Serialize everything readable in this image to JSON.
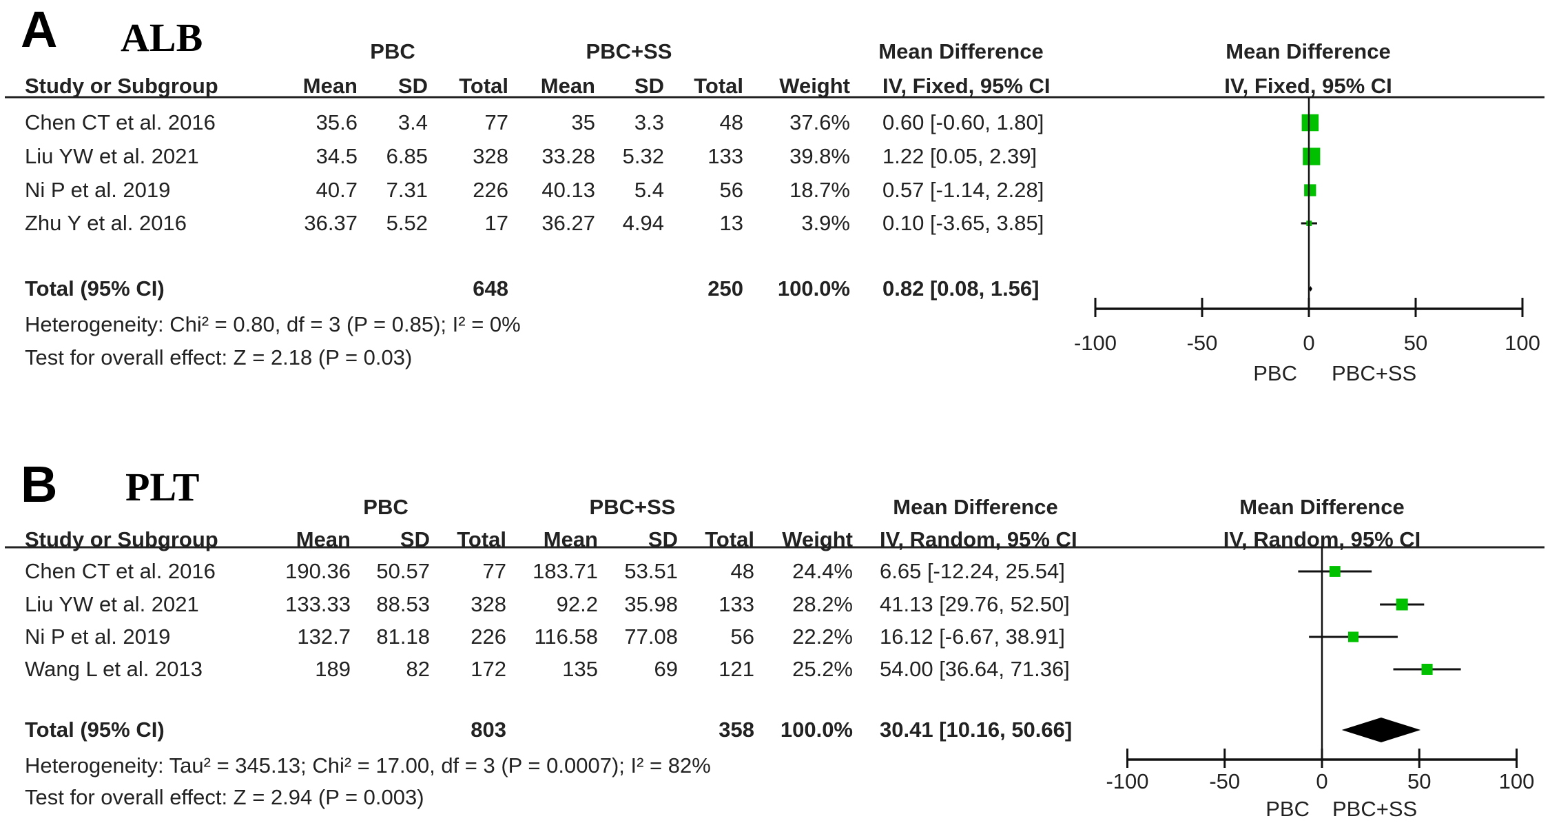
{
  "chart_data": [
    {
      "type": "forest",
      "panel_label": "A",
      "title": "ALB",
      "group1": "PBC",
      "group2": "PBC+SS",
      "effect_header": "Mean Difference",
      "method": "IV, Fixed, 95% CI",
      "columns": [
        "Study or Subgroup",
        "Mean",
        "SD",
        "Total",
        "Mean",
        "SD",
        "Total",
        "Weight",
        "IV, Fixed, 95% CI"
      ],
      "studies": [
        {
          "name": "Chen CT et al. 2016",
          "mean1": "35.6",
          "sd1": "3.4",
          "n1": "77",
          "mean2": "35",
          "sd2": "3.3",
          "n2": "48",
          "weight": "37.6%",
          "ci_text": "0.60 [-0.60, 1.80]",
          "md": 0.6,
          "lo": -0.6,
          "hi": 1.8,
          "w": 37.6
        },
        {
          "name": "Liu YW et al. 2021",
          "mean1": "34.5",
          "sd1": "6.85",
          "n1": "328",
          "mean2": "33.28",
          "sd2": "5.32",
          "n2": "133",
          "weight": "39.8%",
          "ci_text": "1.22 [0.05, 2.39]",
          "md": 1.22,
          "lo": 0.05,
          "hi": 2.39,
          "w": 39.8
        },
        {
          "name": "Ni P et al. 2019",
          "mean1": "40.7",
          "sd1": "7.31",
          "n1": "226",
          "mean2": "40.13",
          "sd2": "5.4",
          "n2": "56",
          "weight": "18.7%",
          "ci_text": "0.57 [-1.14, 2.28]",
          "md": 0.57,
          "lo": -1.14,
          "hi": 2.28,
          "w": 18.7
        },
        {
          "name": "Zhu Y et al. 2016",
          "mean1": "36.37",
          "sd1": "5.52",
          "n1": "17",
          "mean2": "36.27",
          "sd2": "4.94",
          "n2": "13",
          "weight": "3.9%",
          "ci_text": "0.10 [-3.65, 3.85]",
          "md": 0.1,
          "lo": -3.65,
          "hi": 3.85,
          "w": 3.9
        }
      ],
      "total": {
        "name": "Total (95% CI)",
        "n1": "648",
        "n2": "250",
        "weight": "100.0%",
        "ci_text": "0.82 [0.08, 1.56]",
        "md": 0.82,
        "lo": 0.08,
        "hi": 1.56
      },
      "heterogeneity": "Heterogeneity: Chi² = 0.80, df = 3 (P = 0.85); I² = 0%",
      "overall_test": "Test for overall effect: Z = 2.18 (P = 0.03)",
      "xlim": [
        -100,
        100
      ],
      "ticks": [
        "-100",
        "-50",
        "0",
        "50",
        "100"
      ],
      "favours_left": "PBC",
      "favours_right": "PBC+SS",
      "marker_color": "#00c000"
    },
    {
      "type": "forest",
      "panel_label": "B",
      "title": "PLT",
      "group1": "PBC",
      "group2": "PBC+SS",
      "effect_header": "Mean Difference",
      "method": "IV, Random, 95% CI",
      "columns": [
        "Study or Subgroup",
        "Mean",
        "SD",
        "Total",
        "Mean",
        "SD",
        "Total",
        "Weight",
        "IV, Random, 95% CI"
      ],
      "studies": [
        {
          "name": "Chen CT et al. 2016",
          "mean1": "190.36",
          "sd1": "50.57",
          "n1": "77",
          "mean2": "183.71",
          "sd2": "53.51",
          "n2": "48",
          "weight": "24.4%",
          "ci_text": "6.65 [-12.24, 25.54]",
          "md": 6.65,
          "lo": -12.24,
          "hi": 25.54,
          "w": 24.4
        },
        {
          "name": "Liu YW et al. 2021",
          "mean1": "133.33",
          "sd1": "88.53",
          "n1": "328",
          "mean2": "92.2",
          "sd2": "35.98",
          "n2": "133",
          "weight": "28.2%",
          "ci_text": "41.13 [29.76, 52.50]",
          "md": 41.13,
          "lo": 29.76,
          "hi": 52.5,
          "w": 28.2
        },
        {
          "name": "Ni P et al. 2019",
          "mean1": "132.7",
          "sd1": "81.18",
          "n1": "226",
          "mean2": "116.58",
          "sd2": "77.08",
          "n2": "56",
          "weight": "22.2%",
          "ci_text": "16.12 [-6.67, 38.91]",
          "md": 16.12,
          "lo": -6.67,
          "hi": 38.91,
          "w": 22.2
        },
        {
          "name": "Wang L et al. 2013",
          "mean1": "189",
          "sd1": "82",
          "n1": "172",
          "mean2": "135",
          "sd2": "69",
          "n2": "121",
          "weight": "25.2%",
          "ci_text": "54.00 [36.64, 71.36]",
          "md": 54.0,
          "lo": 36.64,
          "hi": 71.36,
          "w": 25.2
        }
      ],
      "total": {
        "name": "Total (95% CI)",
        "n1": "803",
        "n2": "358",
        "weight": "100.0%",
        "ci_text": "30.41 [10.16, 50.66]",
        "md": 30.41,
        "lo": 10.16,
        "hi": 50.66
      },
      "heterogeneity": "Heterogeneity: Tau² = 345.13; Chi² = 17.00, df = 3 (P = 0.0007); I² = 82%",
      "overall_test": "Test for overall effect: Z = 2.94 (P = 0.003)",
      "xlim": [
        -100,
        100
      ],
      "ticks": [
        "-100",
        "-50",
        "0",
        "50",
        "100"
      ],
      "favours_left": "PBC",
      "favours_right": "PBC+SS",
      "marker_color": "#00c000"
    }
  ]
}
